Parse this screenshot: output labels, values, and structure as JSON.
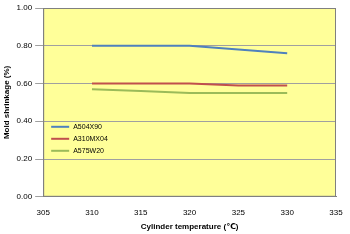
{
  "chart_data": {
    "type": "line",
    "x_label": "Cylinder temperature (℃)",
    "y_label": "Mold shrinkage (%)",
    "x": [
      310,
      315,
      320,
      325,
      330
    ],
    "series": [
      {
        "name": "A504X90",
        "color": "#4f81bd",
        "values": [
          0.8,
          0.8,
          0.8,
          0.78,
          0.76
        ]
      },
      {
        "name": "A310MX04",
        "color": "#c0504d",
        "values": [
          0.6,
          0.6,
          0.6,
          0.59,
          0.59
        ]
      },
      {
        "name": "A575W20",
        "color": "#9bbb59",
        "values": [
          0.57,
          0.56,
          0.55,
          0.55,
          0.55
        ]
      }
    ],
    "xlim": [
      305,
      335
    ],
    "xticks": [
      305,
      310,
      315,
      320,
      325,
      330,
      335
    ],
    "ylim": [
      0,
      1
    ],
    "yticks": [
      {
        "value": 0,
        "label": "0.00"
      },
      {
        "value": 0.2,
        "label": "0.20"
      },
      {
        "value": 0.4,
        "label": "0.40"
      },
      {
        "value": 0.6,
        "label": "0.60"
      },
      {
        "value": 0.8,
        "label": "0.80"
      },
      {
        "value": 1,
        "label": "1.00"
      }
    ],
    "grid": true,
    "legend": "lower left",
    "marker": "none"
  }
}
